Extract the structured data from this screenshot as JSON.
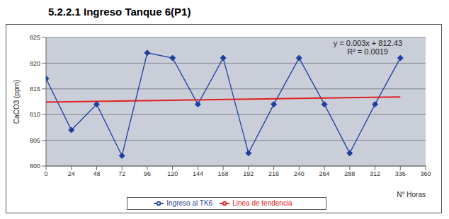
{
  "chart_data": {
    "type": "line",
    "title": "5.2.2.1 Ingreso Tanque 6(P1)",
    "x_label": "N° Horas",
    "y_label": "CaCO3 (ppm)",
    "xlim": [
      0,
      360
    ],
    "xticks": [
      0,
      24,
      48,
      72,
      96,
      120,
      144,
      168,
      192,
      216,
      240,
      264,
      288,
      312,
      336,
      360
    ],
    "ylim": [
      800,
      825
    ],
    "yticks": [
      800,
      805,
      810,
      815,
      820,
      825
    ],
    "grid": true,
    "legend": "bottom",
    "annotations": [
      "y = 0.003x + 812.43",
      "R² = 0.0019"
    ],
    "series": [
      {
        "name": "Ingreso al TK6",
        "color": "#1f3f9f",
        "marker": "diamond",
        "x": [
          0,
          24,
          48,
          72,
          96,
          120,
          144,
          168,
          192,
          216,
          240,
          264,
          288,
          312,
          336
        ],
        "values": [
          817,
          807,
          812,
          802,
          822,
          821,
          812,
          821,
          802.5,
          812,
          821,
          812,
          802.5,
          812,
          821
        ]
      },
      {
        "name": "Linea de tendencia",
        "color": "#e02020",
        "marker": "none",
        "x": [
          0,
          336
        ],
        "values": [
          812.43,
          813.44
        ]
      }
    ]
  }
}
